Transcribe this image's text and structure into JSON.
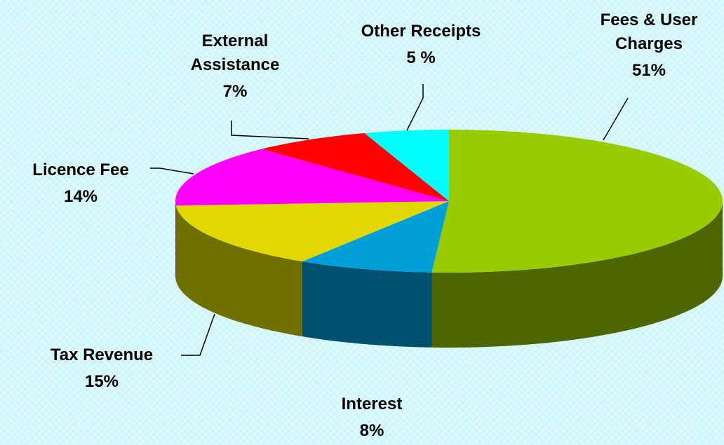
{
  "chart_data": {
    "type": "pie3d",
    "categories": [
      "Fees & User Charges",
      "Interest",
      "Tax Revenue",
      "Licence Fee",
      "External Assistance",
      "Other Receipts"
    ],
    "values": [
      51,
      8,
      15,
      14,
      7,
      5
    ],
    "value_labels": [
      "51%",
      "8%",
      "15%",
      "14%",
      "7%",
      "5 %"
    ],
    "colors": [
      "#99cc00",
      "#009fd8",
      "#e0d800",
      "#ff00ff",
      "#ff0000",
      "#00ffff"
    ],
    "side_colors": [
      "#4d6600",
      "#005070",
      "#707000",
      "#800080",
      "#800000",
      "#008080"
    ],
    "start_angle": 0,
    "direction": "clockwise"
  }
}
